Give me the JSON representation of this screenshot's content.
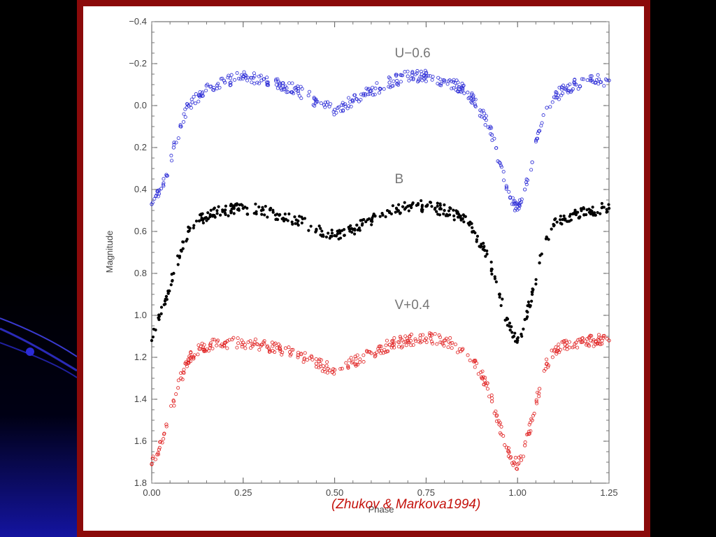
{
  "slide": {
    "citation": "(Zhukov & Markova1994)",
    "colors": {
      "frame": "#8b0a0a",
      "background": "#000000",
      "accent": "#1a1aa8"
    }
  },
  "chart_data": {
    "type": "scatter",
    "title": "",
    "xlabel": "Phase",
    "ylabel": "Magnitude",
    "xlim": [
      0.0,
      1.25
    ],
    "ylim": [
      -0.4,
      1.8
    ],
    "y_inverted": true,
    "grid": false,
    "x_ticks": [
      "0.00",
      "0.25",
      "0.50",
      "0.75",
      "1.00",
      "1.25"
    ],
    "y_ticks": [
      "−0.4",
      "−0.2",
      "0.0",
      "0.2",
      "0.4",
      "0.6",
      "0.8",
      "1.0",
      "1.2",
      "1.4",
      "1.6",
      "1.8"
    ],
    "series": [
      {
        "name": "U−0.6",
        "color": "#2b2bd6",
        "marker": "open-circle",
        "x": [
          0.0,
          0.02,
          0.04,
          0.06,
          0.08,
          0.1,
          0.13,
          0.16,
          0.2,
          0.25,
          0.3,
          0.35,
          0.4,
          0.45,
          0.5,
          0.55,
          0.6,
          0.65,
          0.7,
          0.75,
          0.8,
          0.85,
          0.88,
          0.91,
          0.93,
          0.95,
          0.97,
          0.98,
          0.99,
          1.0,
          1.01,
          1.02,
          1.04,
          1.06,
          1.08,
          1.1,
          1.13,
          1.16,
          1.2,
          1.25
        ],
        "y": [
          0.47,
          0.42,
          0.33,
          0.2,
          0.1,
          0.0,
          -0.05,
          -0.09,
          -0.11,
          -0.14,
          -0.12,
          -0.1,
          -0.07,
          -0.02,
          0.02,
          -0.02,
          -0.07,
          -0.11,
          -0.14,
          -0.14,
          -0.12,
          -0.08,
          -0.03,
          0.06,
          0.14,
          0.27,
          0.39,
          0.44,
          0.47,
          0.48,
          0.46,
          0.4,
          0.27,
          0.12,
          0.01,
          -0.04,
          -0.08,
          -0.1,
          -0.12,
          -0.12
        ]
      },
      {
        "name": "B",
        "color": "#000000",
        "marker": "filled-circle",
        "x": [
          0.0,
          0.02,
          0.04,
          0.06,
          0.08,
          0.1,
          0.13,
          0.16,
          0.2,
          0.25,
          0.3,
          0.35,
          0.4,
          0.45,
          0.5,
          0.55,
          0.6,
          0.65,
          0.7,
          0.75,
          0.8,
          0.85,
          0.88,
          0.91,
          0.93,
          0.95,
          0.97,
          0.98,
          0.99,
          1.0,
          1.01,
          1.02,
          1.04,
          1.06,
          1.08,
          1.1,
          1.13,
          1.16,
          1.2,
          1.25
        ],
        "y": [
          1.12,
          1.02,
          0.91,
          0.8,
          0.69,
          0.6,
          0.55,
          0.52,
          0.5,
          0.49,
          0.5,
          0.52,
          0.55,
          0.59,
          0.62,
          0.59,
          0.55,
          0.51,
          0.48,
          0.48,
          0.5,
          0.54,
          0.6,
          0.69,
          0.78,
          0.9,
          1.02,
          1.07,
          1.1,
          1.12,
          1.09,
          1.02,
          0.9,
          0.75,
          0.63,
          0.57,
          0.54,
          0.52,
          0.5,
          0.49
        ]
      },
      {
        "name": "V+0.4",
        "color": "#e02020",
        "marker": "open-circle",
        "x": [
          0.0,
          0.02,
          0.04,
          0.06,
          0.08,
          0.1,
          0.13,
          0.16,
          0.2,
          0.25,
          0.3,
          0.35,
          0.4,
          0.45,
          0.5,
          0.55,
          0.6,
          0.65,
          0.7,
          0.75,
          0.8,
          0.85,
          0.88,
          0.91,
          0.93,
          0.95,
          0.97,
          0.98,
          0.99,
          1.0,
          1.01,
          1.02,
          1.04,
          1.06,
          1.08,
          1.1,
          1.13,
          1.16,
          1.2,
          1.25
        ],
        "y": [
          1.71,
          1.64,
          1.52,
          1.41,
          1.3,
          1.21,
          1.16,
          1.14,
          1.13,
          1.13,
          1.14,
          1.16,
          1.19,
          1.23,
          1.26,
          1.22,
          1.18,
          1.14,
          1.12,
          1.11,
          1.12,
          1.16,
          1.22,
          1.31,
          1.41,
          1.52,
          1.63,
          1.68,
          1.7,
          1.71,
          1.69,
          1.62,
          1.5,
          1.35,
          1.23,
          1.17,
          1.14,
          1.13,
          1.12,
          1.12
        ]
      }
    ]
  }
}
